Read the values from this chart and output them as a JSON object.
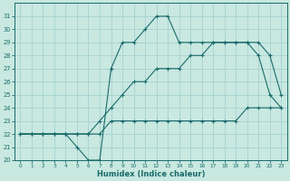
{
  "xlabel": "Humidex (Indice chaleur)",
  "xlim": [
    -0.5,
    23.5
  ],
  "ylim": [
    20,
    32
  ],
  "yticks": [
    20,
    21,
    22,
    23,
    24,
    25,
    26,
    27,
    28,
    29,
    30,
    31
  ],
  "xticks": [
    0,
    1,
    2,
    3,
    4,
    5,
    6,
    7,
    8,
    9,
    10,
    11,
    12,
    13,
    14,
    15,
    16,
    17,
    18,
    19,
    20,
    21,
    22,
    23
  ],
  "background_color": "#c8e8e0",
  "grid_color": "#9ecece",
  "line_color": "#1a6b6b",
  "line1_y": [
    22,
    22,
    22,
    22,
    22,
    21,
    20,
    20,
    27,
    29,
    29,
    30,
    31,
    31,
    29,
    29,
    29,
    29,
    29,
    29,
    29,
    28,
    25,
    24
  ],
  "line2_y": [
    22,
    22,
    22,
    22,
    22,
    22,
    22,
    23,
    24,
    25,
    26,
    26,
    27,
    27,
    27,
    28,
    28,
    29,
    29,
    29,
    29,
    29,
    28,
    25
  ],
  "line3_y": [
    22,
    22,
    22,
    22,
    22,
    22,
    22,
    22,
    23,
    23,
    23,
    23,
    23,
    23,
    23,
    23,
    23,
    23,
    23,
    23,
    24,
    24,
    24,
    24
  ]
}
